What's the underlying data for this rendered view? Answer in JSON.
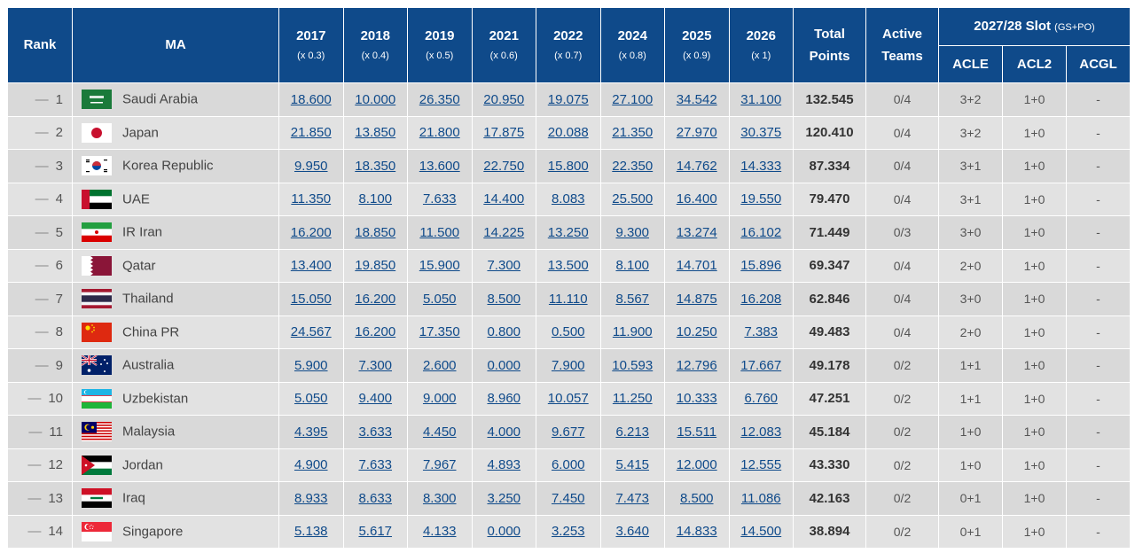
{
  "headers": {
    "rank": "Rank",
    "ma": "MA",
    "years": [
      {
        "year": "2017",
        "mult": "(x 0.3)"
      },
      {
        "year": "2018",
        "mult": "(x 0.4)"
      },
      {
        "year": "2019",
        "mult": "(x 0.5)"
      },
      {
        "year": "2021",
        "mult": "(x 0.6)"
      },
      {
        "year": "2022",
        "mult": "(x 0.7)"
      },
      {
        "year": "2024",
        "mult": "(x 0.8)"
      },
      {
        "year": "2025",
        "mult": "(x 0.9)"
      },
      {
        "year": "2026",
        "mult": "(x 1)"
      }
    ],
    "total_line1": "Total",
    "total_line2": "Points",
    "active_line1": "Active",
    "active_line2": "Teams",
    "slot": "2027/28 Slot",
    "slot_sub": "(GS+PO)",
    "acle": "ACLE",
    "acl2": "ACL2",
    "acgl": "ACGL"
  },
  "rows": [
    {
      "rank": "1",
      "country": "Saudi Arabia",
      "flag": "saudi-arabia-flag-icon",
      "pts": [
        "18.600",
        "10.000",
        "26.350",
        "20.950",
        "19.075",
        "27.100",
        "34.542",
        "31.100"
      ],
      "total": "132.545",
      "active": "0/4",
      "acle": "3+2",
      "acl2": "1+0",
      "acgl": "-"
    },
    {
      "rank": "2",
      "country": "Japan",
      "flag": "japan-flag-icon",
      "pts": [
        "21.850",
        "13.850",
        "21.800",
        "17.875",
        "20.088",
        "21.350",
        "27.970",
        "30.375"
      ],
      "total": "120.410",
      "active": "0/4",
      "acle": "3+2",
      "acl2": "1+0",
      "acgl": "-"
    },
    {
      "rank": "3",
      "country": "Korea Republic",
      "flag": "korea-flag-icon",
      "pts": [
        "9.950",
        "18.350",
        "13.600",
        "22.750",
        "15.800",
        "22.350",
        "14.762",
        "14.333"
      ],
      "total": "87.334",
      "active": "0/4",
      "acle": "3+1",
      "acl2": "1+0",
      "acgl": "-"
    },
    {
      "rank": "4",
      "country": "UAE",
      "flag": "uae-flag-icon",
      "pts": [
        "11.350",
        "8.100",
        "7.633",
        "14.400",
        "8.083",
        "25.500",
        "16.400",
        "19.550"
      ],
      "total": "79.470",
      "active": "0/4",
      "acle": "3+1",
      "acl2": "1+0",
      "acgl": "-"
    },
    {
      "rank": "5",
      "country": "IR Iran",
      "flag": "iran-flag-icon",
      "pts": [
        "16.200",
        "18.850",
        "11.500",
        "14.225",
        "13.250",
        "9.300",
        "13.274",
        "16.102"
      ],
      "total": "71.449",
      "active": "0/3",
      "acle": "3+0",
      "acl2": "1+0",
      "acgl": "-"
    },
    {
      "rank": "6",
      "country": "Qatar",
      "flag": "qatar-flag-icon",
      "pts": [
        "13.400",
        "19.850",
        "15.900",
        "7.300",
        "13.500",
        "8.100",
        "14.701",
        "15.896"
      ],
      "total": "69.347",
      "active": "0/4",
      "acle": "2+0",
      "acl2": "1+0",
      "acgl": "-"
    },
    {
      "rank": "7",
      "country": "Thailand",
      "flag": "thailand-flag-icon",
      "pts": [
        "15.050",
        "16.200",
        "5.050",
        "8.500",
        "11.110",
        "8.567",
        "14.875",
        "16.208"
      ],
      "total": "62.846",
      "active": "0/4",
      "acle": "3+0",
      "acl2": "1+0",
      "acgl": "-"
    },
    {
      "rank": "8",
      "country": "China PR",
      "flag": "china-flag-icon",
      "pts": [
        "24.567",
        "16.200",
        "17.350",
        "0.800",
        "0.500",
        "11.900",
        "10.250",
        "7.383"
      ],
      "total": "49.483",
      "active": "0/4",
      "acle": "2+0",
      "acl2": "1+0",
      "acgl": "-"
    },
    {
      "rank": "9",
      "country": "Australia",
      "flag": "australia-flag-icon",
      "pts": [
        "5.900",
        "7.300",
        "2.600",
        "0.000",
        "7.900",
        "10.593",
        "12.796",
        "17.667"
      ],
      "total": "49.178",
      "active": "0/2",
      "acle": "1+1",
      "acl2": "1+0",
      "acgl": "-"
    },
    {
      "rank": "10",
      "country": "Uzbekistan",
      "flag": "uzbekistan-flag-icon",
      "pts": [
        "5.050",
        "9.400",
        "9.000",
        "8.960",
        "10.057",
        "11.250",
        "10.333",
        "6.760"
      ],
      "total": "47.251",
      "active": "0/2",
      "acle": "1+1",
      "acl2": "1+0",
      "acgl": "-"
    },
    {
      "rank": "11",
      "country": "Malaysia",
      "flag": "malaysia-flag-icon",
      "pts": [
        "4.395",
        "3.633",
        "4.450",
        "4.000",
        "9.677",
        "6.213",
        "15.511",
        "12.083"
      ],
      "total": "45.184",
      "active": "0/2",
      "acle": "1+0",
      "acl2": "1+0",
      "acgl": "-"
    },
    {
      "rank": "12",
      "country": "Jordan",
      "flag": "jordan-flag-icon",
      "pts": [
        "4.900",
        "7.633",
        "7.967",
        "4.893",
        "6.000",
        "5.415",
        "12.000",
        "12.555"
      ],
      "total": "43.330",
      "active": "0/2",
      "acle": "1+0",
      "acl2": "1+0",
      "acgl": "-"
    },
    {
      "rank": "13",
      "country": "Iraq",
      "flag": "iraq-flag-icon",
      "pts": [
        "8.933",
        "8.633",
        "8.300",
        "3.250",
        "7.450",
        "7.473",
        "8.500",
        "11.086"
      ],
      "total": "42.163",
      "active": "0/2",
      "acle": "0+1",
      "acl2": "1+0",
      "acgl": "-"
    },
    {
      "rank": "14",
      "country": "Singapore",
      "flag": "singapore-flag-icon",
      "pts": [
        "5.138",
        "5.617",
        "4.133",
        "0.000",
        "3.253",
        "3.640",
        "14.833",
        "14.500"
      ],
      "total": "38.894",
      "active": "0/2",
      "acle": "0+1",
      "acl2": "1+0",
      "acgl": "-"
    }
  ],
  "colors": {
    "header_bg": "#0f4a8a",
    "row_bg": "#d9d9d9",
    "link": "#0f4a8a"
  }
}
